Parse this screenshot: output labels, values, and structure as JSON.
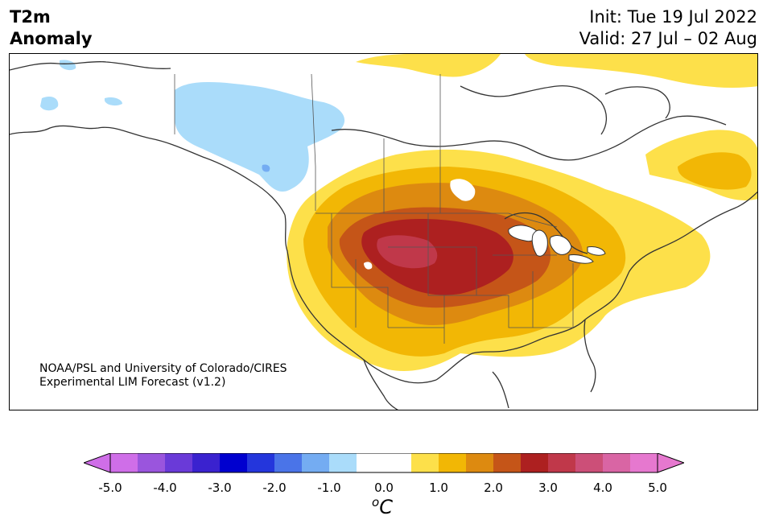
{
  "header": {
    "title_line1": "T2m",
    "title_line2": "Anomaly",
    "init": "Init: Tue 19 Jul 2022",
    "valid": "Valid: 27 Jul – 02 Aug"
  },
  "credit": {
    "line1": "NOAA/PSL and University of Colorado/CIRES",
    "line2": "Experimental LIM Forecast (v1.2)"
  },
  "colorbar": {
    "ticks": [
      "-5.0",
      "-4.0",
      "-3.0",
      "-2.0",
      "-1.0",
      "0.0",
      "1.0",
      "2.0",
      "3.0",
      "4.0",
      "5.0"
    ],
    "unit_sup": "o",
    "unit": "C",
    "colors": [
      "#cf6ee8",
      "#9a55dd",
      "#6a3ad8",
      "#3a22cf",
      "#0000cf",
      "#2436dc",
      "#4a74e8",
      "#74acf2",
      "#aadcfa",
      "#ffffff",
      "#ffffff",
      "#fde04a",
      "#f2b705",
      "#dd8a10",
      "#c55518",
      "#ad2020",
      "#c0384a",
      "#cc4f78",
      "#d965a4",
      "#e678cf"
    ]
  },
  "map": {
    "variable": "2 m temperature anomaly",
    "region": "North America",
    "colors": {
      "land_outline": "#333333",
      "cool_1": "#aadcfa",
      "cool_2": "#74acf2",
      "warm_1": "#fde04a",
      "warm_2": "#f2b705",
      "warm_3": "#dd8a10",
      "warm_4": "#c55518",
      "warm_5": "#ad2020",
      "warm_6": "#c0384a"
    }
  }
}
